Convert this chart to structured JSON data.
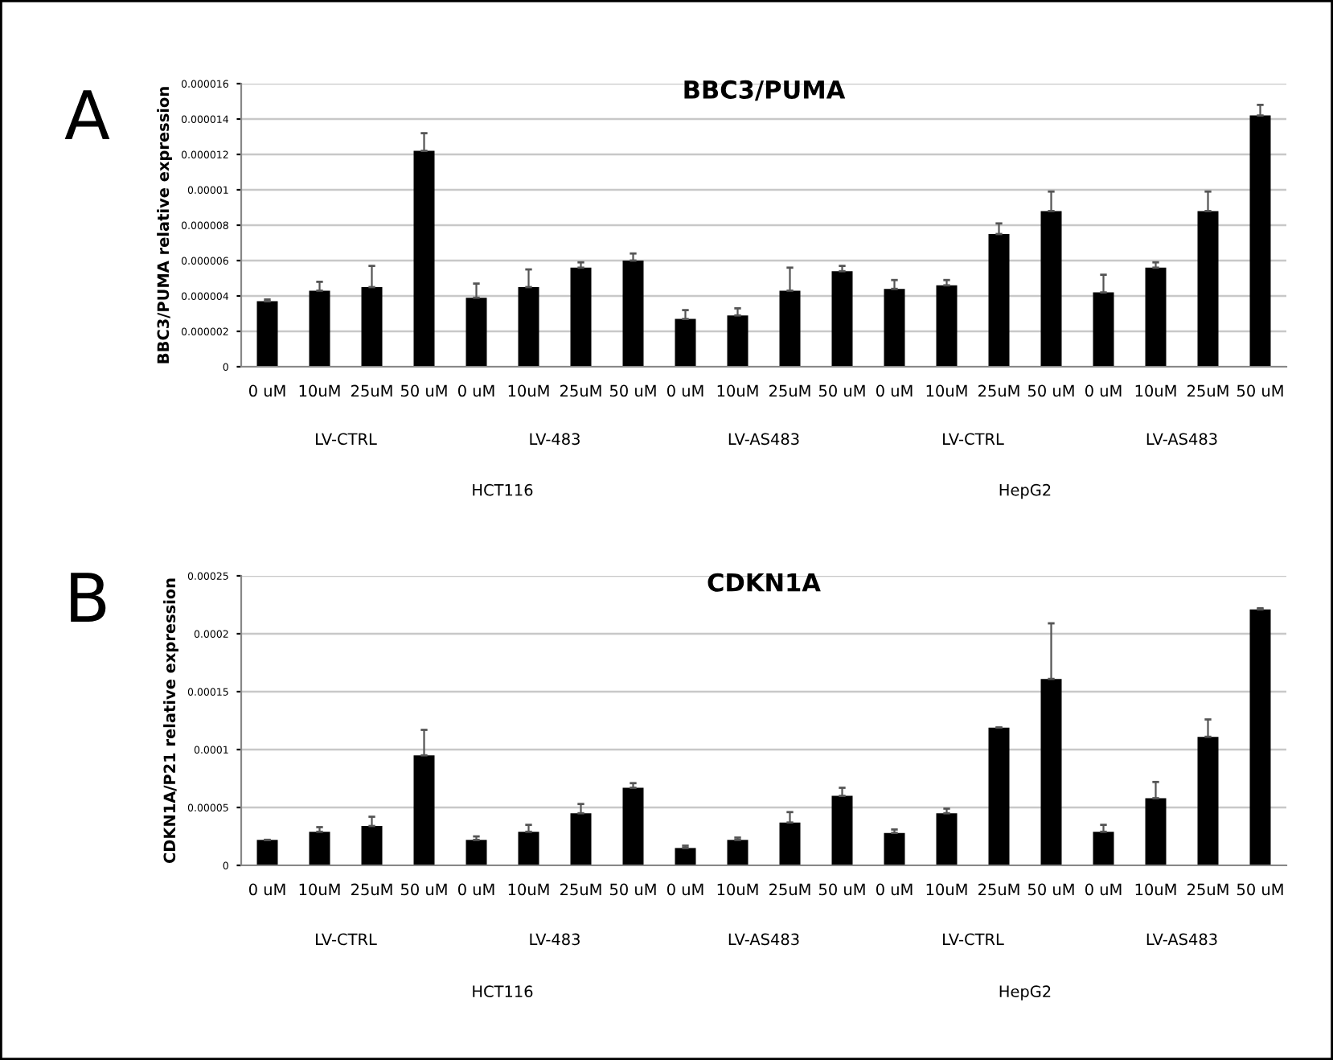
{
  "chart_data": [
    {
      "type": "bar",
      "title": "BBC3/PUMA",
      "ylabel": "BBC3/PUMA relative expression",
      "categories": [
        "0 uM",
        "10uM",
        "25uM",
        "50 uM",
        "0 uM",
        "10uM",
        "25uM",
        "50 uM",
        "0 uM",
        "10uM",
        "25uM",
        "50 uM",
        "0 uM",
        "10uM",
        "25uM",
        "50 uM",
        "0 uM",
        "10uM",
        "25uM",
        "50 uM"
      ],
      "values": [
        3.7e-06,
        4.3e-06,
        4.5e-06,
        1.22e-05,
        3.9e-06,
        4.5e-06,
        5.6e-06,
        6e-06,
        2.7e-06,
        2.9e-06,
        4.3e-06,
        5.4e-06,
        4.4e-06,
        4.6e-06,
        7.5e-06,
        8.8e-06,
        4.2e-06,
        5.6e-06,
        8.8e-06,
        1.42e-05
      ],
      "errors": [
        1e-07,
        5e-07,
        1.2e-06,
        1e-06,
        8e-07,
        1e-06,
        3e-07,
        4e-07,
        5e-07,
        4e-07,
        1.3e-06,
        3e-07,
        5e-07,
        3e-07,
        6e-07,
        1.1e-06,
        1e-06,
        3e-07,
        1.1e-06,
        6e-07
      ],
      "color": "#000000",
      "ylim": [
        0,
        1.6e-05
      ],
      "yticks": [
        {
          "value": 0,
          "label": "0"
        },
        {
          "value": 2e-06,
          "label": "0.000002"
        },
        {
          "value": 4e-06,
          "label": "0.000004"
        },
        {
          "value": 6e-06,
          "label": "0.000006"
        },
        {
          "value": 8e-06,
          "label": "0.000008"
        },
        {
          "value": 1e-05,
          "label": "0.00001"
        },
        {
          "value": 1.2e-05,
          "label": "0.000012"
        },
        {
          "value": 1.4e-05,
          "label": "0.000014"
        },
        {
          "value": 1.6e-05,
          "label": "0.000016"
        }
      ],
      "grid": "y",
      "annotations": [
        "A",
        "LV-CTRL",
        "LV-483",
        "LV-AS483",
        "LV-CTRL",
        "LV-AS483",
        "HCT116",
        "HepG2"
      ]
    },
    {
      "type": "bar",
      "title": "CDKN1A",
      "ylabel": "CDKN1A/P21 relative expression",
      "categories": [
        "0 uM",
        "10uM",
        "25uM",
        "50 uM",
        "0 uM",
        "10uM",
        "25uM",
        "50 uM",
        "0 uM",
        "10uM",
        "25uM",
        "50 uM",
        "0 uM",
        "10uM",
        "25uM",
        "50 uM",
        "0 uM",
        "10uM",
        "25uM",
        "50 uM"
      ],
      "values": [
        2.2e-05,
        2.9e-05,
        3.4e-05,
        9.5e-05,
        2.2e-05,
        2.9e-05,
        4.5e-05,
        6.7e-05,
        1.5e-05,
        2.2e-05,
        3.7e-05,
        6e-05,
        2.8e-05,
        4.5e-05,
        0.000119,
        0.000161,
        2.9e-05,
        5.8e-05,
        0.000111,
        0.000221
      ],
      "errors": [
        null,
        4e-06,
        8e-06,
        2.2e-05,
        3e-06,
        6e-06,
        8e-06,
        4e-06,
        2e-06,
        2e-06,
        9e-06,
        7e-06,
        3e-06,
        4e-06,
        null,
        4.8e-05,
        6e-06,
        1.4e-05,
        1.5e-05,
        1e-06
      ],
      "color": "#000000",
      "ylim": [
        0,
        0.00025
      ],
      "yticks": [
        {
          "value": 0,
          "label": "0"
        },
        {
          "value": 5e-05,
          "label": "0.00005"
        },
        {
          "value": 0.0001,
          "label": "0.0001"
        },
        {
          "value": 0.00015,
          "label": "0.00015"
        },
        {
          "value": 0.0002,
          "label": "0.0002"
        },
        {
          "value": 0.00025,
          "label": "0.00025"
        }
      ],
      "grid": "y",
      "annotations": [
        "B",
        "LV-CTRL",
        "LV-483",
        "LV-AS483",
        "LV-CTRL",
        "LV-AS483",
        "HCT116",
        "HepG2"
      ]
    }
  ]
}
